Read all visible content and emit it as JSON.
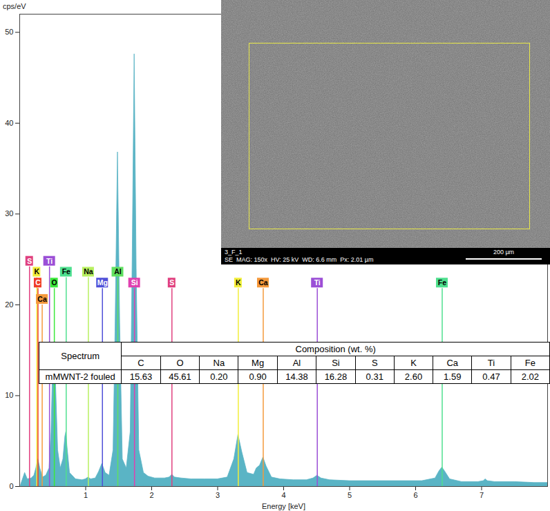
{
  "chart_data": {
    "type": "area",
    "y_label": "cps/eV",
    "x_label": "Energy [keV]",
    "color": "#5ab4c5",
    "xlim": [
      0,
      8
    ],
    "xticks": [
      1,
      2,
      3,
      4,
      5,
      6,
      7
    ],
    "ylim": [
      0,
      52
    ],
    "yticks": [
      0,
      10,
      20,
      30,
      40,
      50
    ],
    "grid": false,
    "x": [
      0.02,
      0.08,
      0.12,
      0.18,
      0.22,
      0.25,
      0.28,
      0.31,
      0.35,
      0.4,
      0.45,
      0.48,
      0.5,
      0.525,
      0.55,
      0.58,
      0.62,
      0.66,
      0.69,
      0.705,
      0.72,
      0.76,
      0.85,
      0.95,
      1.0,
      1.04,
      1.08,
      1.15,
      1.2,
      1.25,
      1.3,
      1.36,
      1.42,
      1.45,
      1.487,
      1.52,
      1.56,
      1.62,
      1.68,
      1.71,
      1.74,
      1.77,
      1.81,
      1.88,
      1.95,
      2.05,
      2.2,
      2.27,
      2.31,
      2.35,
      2.45,
      2.6,
      2.8,
      3.0,
      3.15,
      3.25,
      3.313,
      3.37,
      3.45,
      3.55,
      3.59,
      3.64,
      3.691,
      3.74,
      3.82,
      3.95,
      4.15,
      4.35,
      4.45,
      4.51,
      4.57,
      4.7,
      5.0,
      5.4,
      5.8,
      6.1,
      6.3,
      6.36,
      6.403,
      6.45,
      6.52,
      6.7,
      6.95,
      7.03,
      7.06,
      7.09,
      7.2,
      7.5,
      7.8,
      8.0
    ],
    "values": [
      0.2,
      1.5,
      0.8,
      0.9,
      1.2,
      2.0,
      3.0,
      2.0,
      1.0,
      1.2,
      2.0,
      6.0,
      12.0,
      15.5,
      11.0,
      4.0,
      2.0,
      3.0,
      5.5,
      6.0,
      4.5,
      1.5,
      0.8,
      0.7,
      0.8,
      1.0,
      0.8,
      0.9,
      1.6,
      2.5,
      1.5,
      1.2,
      4.0,
      17.0,
      36.8,
      18.0,
      3.0,
      2.0,
      6.0,
      25.0,
      47.6,
      24.0,
      4.0,
      1.5,
      1.1,
      0.9,
      0.9,
      1.0,
      1.3,
      1.0,
      0.9,
      0.8,
      0.8,
      0.8,
      1.0,
      3.0,
      5.7,
      3.8,
      1.5,
      1.3,
      2.0,
      2.3,
      3.2,
      2.2,
      1.0,
      0.8,
      0.7,
      0.7,
      0.9,
      1.2,
      0.9,
      0.7,
      0.6,
      0.6,
      0.6,
      0.6,
      0.9,
      1.7,
      2.1,
      1.6,
      0.8,
      0.5,
      0.5,
      0.6,
      0.8,
      0.6,
      0.5,
      0.5,
      0.4,
      0.4
    ],
    "element_lines": [
      {
        "label": "S",
        "energy": 0.149,
        "height": 24.2,
        "color": "#e0407f"
      },
      {
        "label": "K",
        "energy": 0.26,
        "height": 23.0,
        "color": "#f2ee3a"
      },
      {
        "label": "C",
        "energy": 0.277,
        "height": 21.8,
        "color": "#f03c28"
      },
      {
        "label": "Ca",
        "energy": 0.341,
        "height": 20.0,
        "color": "#f59a3c"
      },
      {
        "label": "Ti",
        "energy": 0.452,
        "height": 24.2,
        "color": "#9b4fd6"
      },
      {
        "label": "O",
        "energy": 0.525,
        "height": 21.8,
        "color": "#3ce83c"
      },
      {
        "label": "Fe",
        "energy": 0.705,
        "height": 23.0,
        "color": "#4fe08f"
      },
      {
        "label": "Na",
        "energy": 1.041,
        "height": 23.0,
        "color": "#b8f060"
      },
      {
        "label": "Mg",
        "energy": 1.254,
        "height": 21.8,
        "color": "#5050d8"
      },
      {
        "label": "Al",
        "energy": 1.487,
        "height": 23.0,
        "color": "#60e060"
      },
      {
        "label": "Si",
        "energy": 1.74,
        "height": 21.8,
        "color": "#e040b0"
      },
      {
        "label": "S",
        "energy": 2.307,
        "height": 21.8,
        "color": "#e0407f"
      },
      {
        "label": "K",
        "energy": 3.313,
        "height": 21.8,
        "color": "#f2ee3a"
      },
      {
        "label": "Ca",
        "energy": 3.691,
        "height": 21.8,
        "color": "#f59a3c"
      },
      {
        "label": "Ti",
        "energy": 4.51,
        "height": 21.8,
        "color": "#9b4fd6"
      },
      {
        "label": "Fe",
        "energy": 6.403,
        "height": 21.8,
        "color": "#4fe08f"
      }
    ]
  },
  "table": {
    "spectrum_head": "Spectrum",
    "group_head": "Composition (wt. %)",
    "columns": [
      "C",
      "O",
      "Na",
      "Mg",
      "Al",
      "Si",
      "S",
      "K",
      "Ca",
      "Ti",
      "Fe"
    ],
    "rows": [
      [
        "mMWNT-2 fouled",
        "15.63",
        "45.61",
        "0.20",
        "0.90",
        "14.38",
        "16.28",
        "0.31",
        "2.60",
        "1.59",
        "0.47",
        "2.02"
      ]
    ]
  },
  "inset": {
    "label": "3_F_1",
    "info": "SE  MAG: 150x  HV: 25 kV  WD: 6.6 mm  Px: 2.01 µm",
    "scale_bar": "200 µm"
  }
}
